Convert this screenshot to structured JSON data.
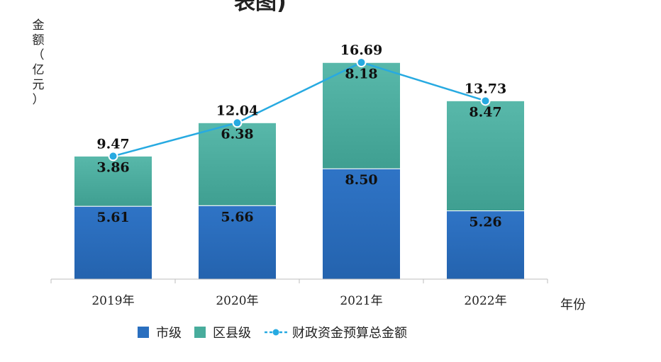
{
  "chart_data": {
    "type": "bar",
    "stacked": true,
    "title": "表图)",
    "ylabel": [
      "金",
      "额",
      "（",
      "亿",
      "元",
      "）"
    ],
    "xlabel": "年份",
    "categories": [
      "2019年",
      "2020年",
      "2021年",
      "2022年"
    ],
    "series": [
      {
        "name": "市级",
        "values": [
          5.61,
          5.66,
          8.5,
          5.26
        ],
        "labels": [
          "5.61",
          "5.66",
          "8.50",
          "5.26"
        ],
        "color": "#2a6fbf"
      },
      {
        "name": "区县级",
        "values": [
          3.86,
          6.38,
          8.18,
          8.47
        ],
        "labels": [
          "3.86",
          "6.38",
          "8.18",
          "8.47"
        ],
        "color": "#48ac9c"
      }
    ],
    "line": {
      "name": "财政资金预算总金额",
      "values": [
        9.47,
        12.04,
        16.69,
        13.73
      ],
      "labels": [
        "9.47",
        "12.04",
        "16.69",
        "13.73"
      ],
      "color": "#27aae1"
    },
    "ylim": [
      0,
      18
    ],
    "legend": "bottom"
  }
}
